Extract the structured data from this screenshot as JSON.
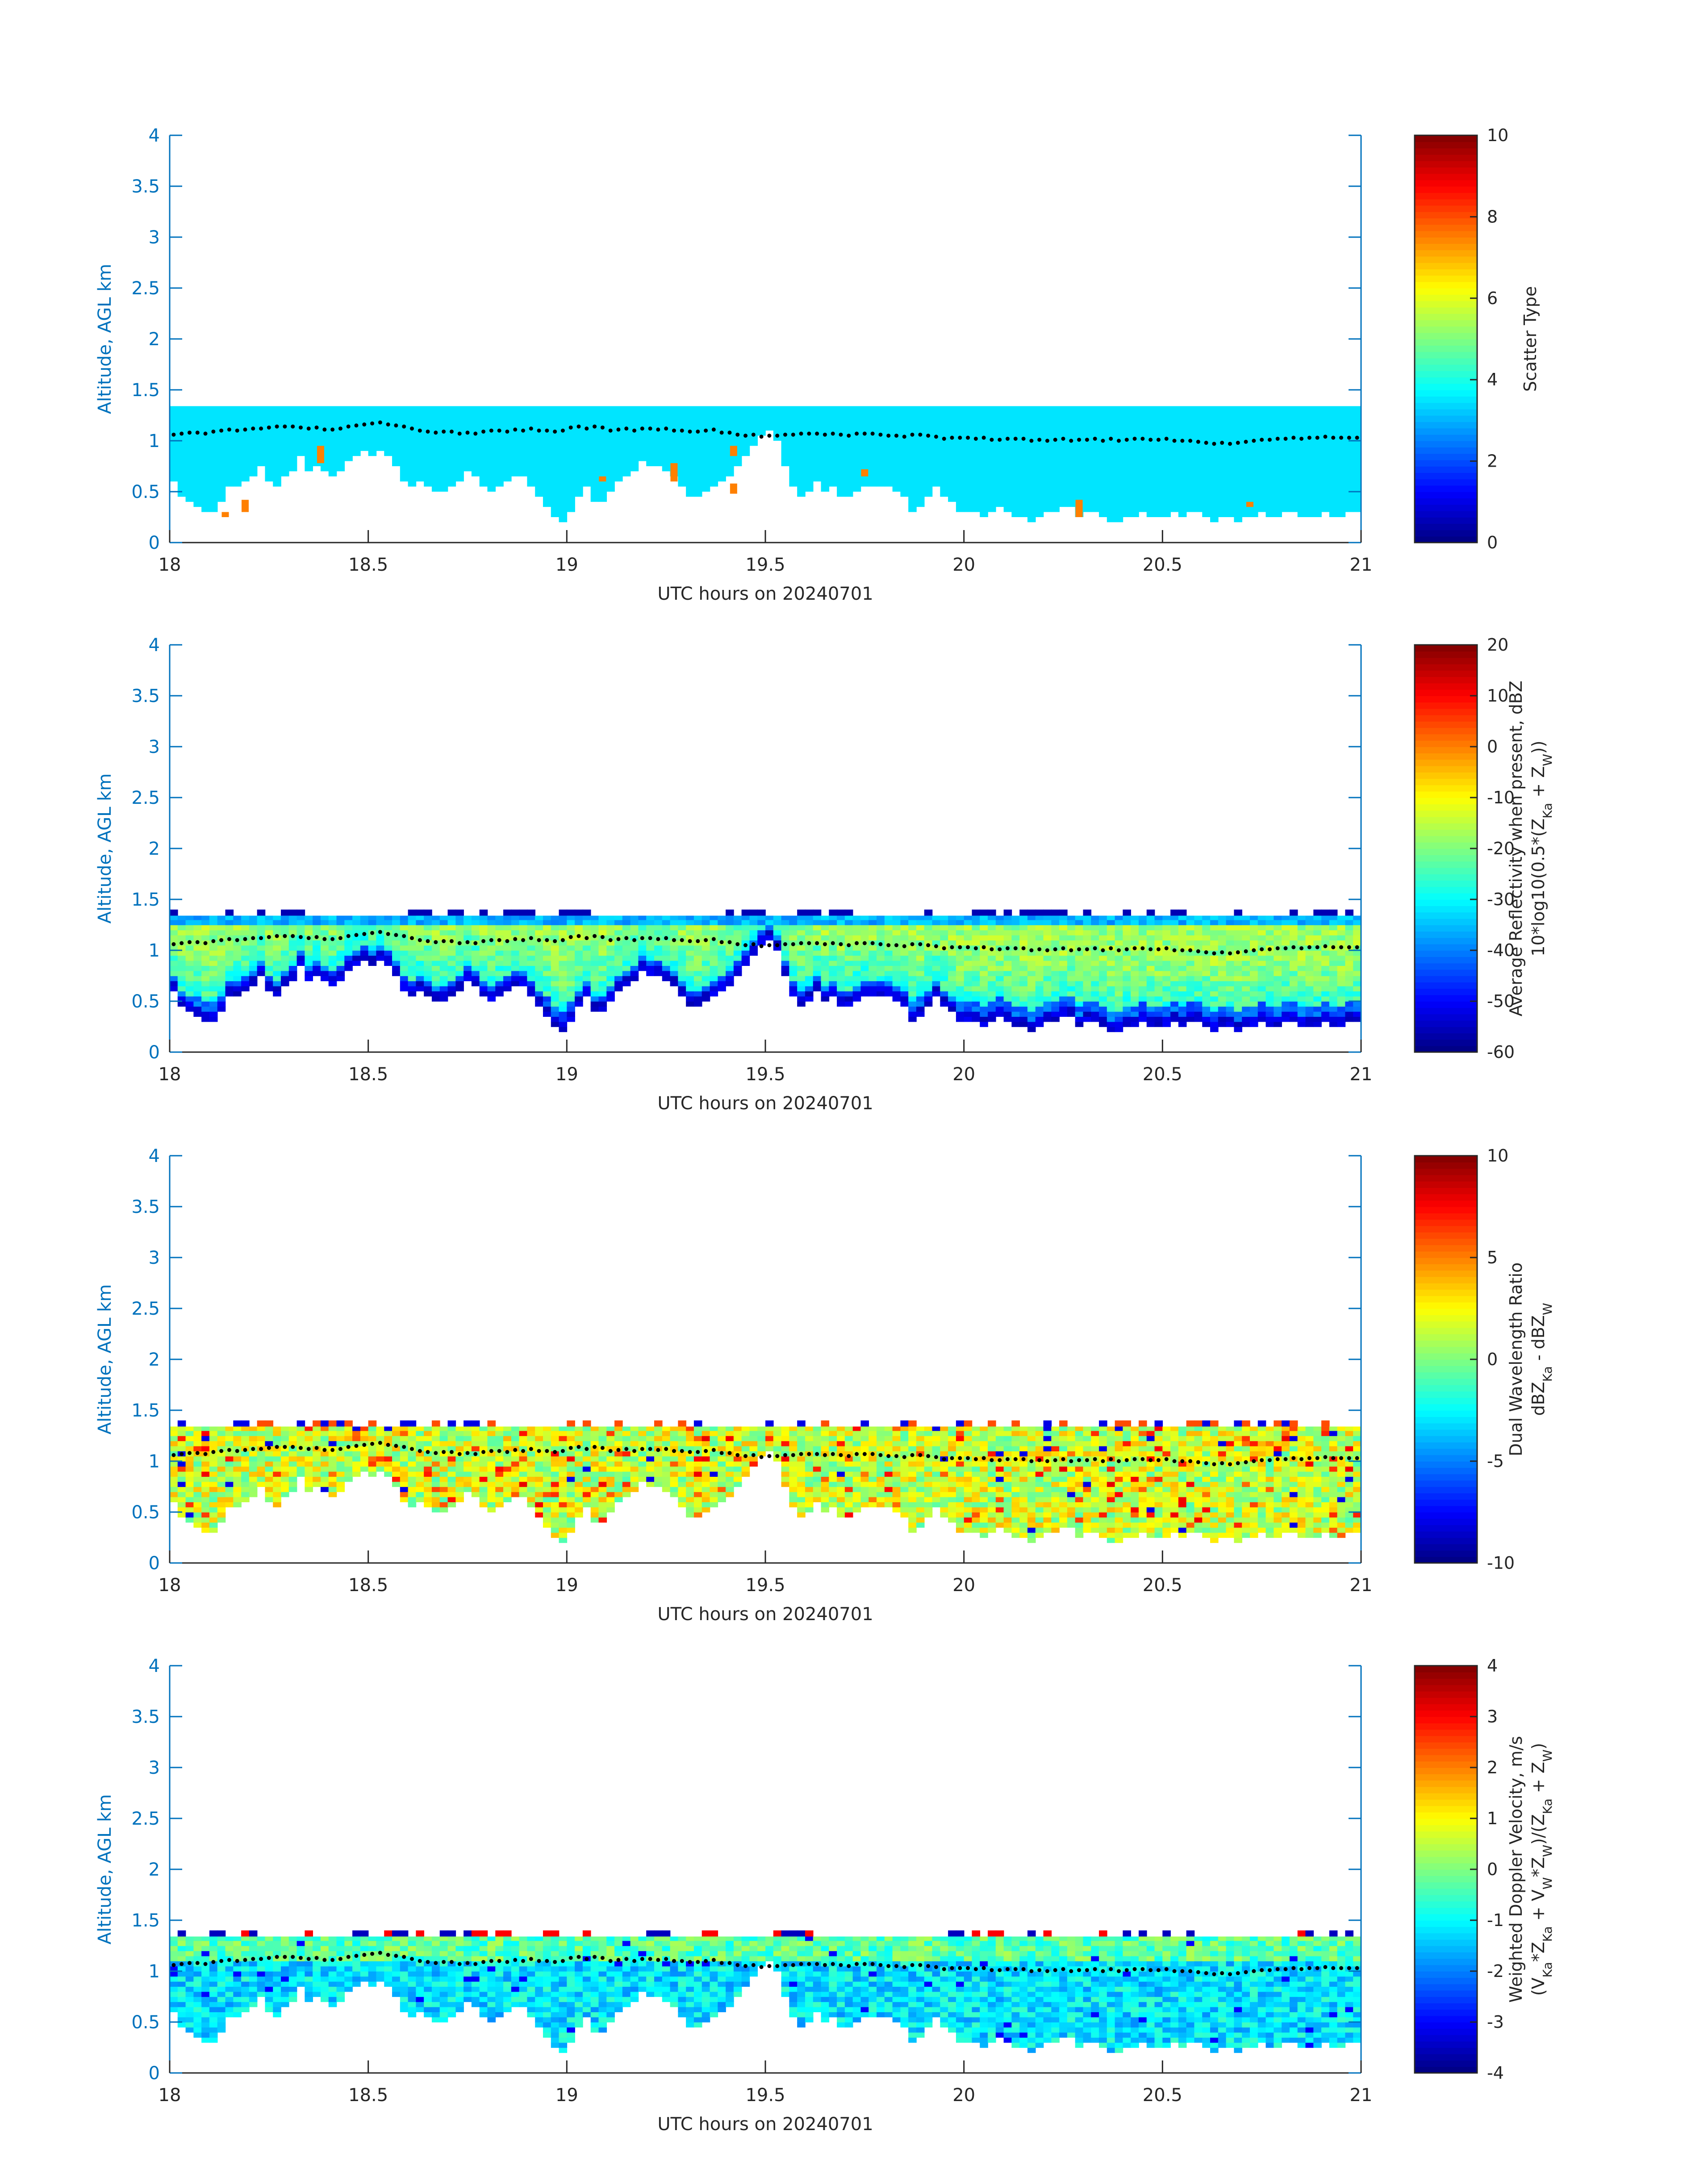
{
  "figure": {
    "background": "#ffffff",
    "axis_color": "#0072bd",
    "text_color": "#262626",
    "colormap": "jet",
    "cloud_top_marker_color": "#000000"
  },
  "chart_data": [
    {
      "type": "heatmap",
      "id": "scatter-type",
      "xlabel": "UTC hours on 20240701",
      "ylabel": "Altitude, AGL km",
      "xlim": [
        18,
        21
      ],
      "ylim": [
        0,
        4
      ],
      "xticks": [
        "18",
        "18.5",
        "19",
        "19.5",
        "20",
        "20.5",
        "21"
      ],
      "yticks": [
        "0",
        "0.5",
        "1",
        "1.5",
        "2",
        "2.5",
        "3",
        "3.5",
        "4"
      ],
      "colorbar": {
        "label_lines": [
          "Scatter Type"
        ],
        "clim": [
          0,
          10
        ],
        "ticks": [
          "0",
          "2",
          "4",
          "6",
          "8",
          "10"
        ]
      },
      "field": "scatter_type",
      "dominant_value": 3.5,
      "isolated_cells": [
        {
          "x": 18.14,
          "bottom": 0.25,
          "top": 0.3,
          "value": 7.5
        },
        {
          "x": 18.19,
          "bottom": 0.3,
          "top": 0.42,
          "value": 7.5
        },
        {
          "x": 18.38,
          "bottom": 0.78,
          "top": 0.95,
          "value": 7.5
        },
        {
          "x": 19.09,
          "bottom": 0.6,
          "top": 0.65,
          "value": 7.5
        },
        {
          "x": 19.27,
          "bottom": 0.6,
          "top": 0.78,
          "value": 7.5
        },
        {
          "x": 19.42,
          "bottom": 0.48,
          "top": 0.58,
          "value": 7.5
        },
        {
          "x": 19.42,
          "bottom": 0.85,
          "top": 0.95,
          "value": 7.5
        },
        {
          "x": 19.75,
          "bottom": 0.65,
          "top": 0.72,
          "value": 7.5
        },
        {
          "x": 20.29,
          "bottom": 0.25,
          "top": 0.42,
          "value": 7.5
        },
        {
          "x": 20.72,
          "bottom": 0.35,
          "top": 0.4,
          "value": 7.5
        }
      ]
    },
    {
      "type": "heatmap",
      "id": "reflectivity",
      "xlabel": "UTC hours on 20240701",
      "ylabel": "Altitude, AGL km",
      "xlim": [
        18,
        21
      ],
      "ylim": [
        0,
        4
      ],
      "xticks": [
        "18",
        "18.5",
        "19",
        "19.5",
        "20",
        "20.5",
        "21"
      ],
      "yticks": [
        "0",
        "0.5",
        "1",
        "1.5",
        "2",
        "2.5",
        "3",
        "3.5",
        "4"
      ],
      "colorbar": {
        "label_lines": [
          "Average Reflectivity when present, dBZ",
          "10*log10(0.5*(Z_Ka + Z_W))"
        ],
        "clim": [
          -60,
          20
        ],
        "ticks": [
          "-60",
          "-50",
          "-40",
          "-30",
          "-20",
          "-10",
          "0",
          "10",
          "20"
        ]
      },
      "field": "reflectivity"
    },
    {
      "type": "heatmap",
      "id": "dwr",
      "xlabel": "UTC hours on 20240701",
      "ylabel": "Altitude, AGL km",
      "xlim": [
        18,
        21
      ],
      "ylim": [
        0,
        4
      ],
      "xticks": [
        "18",
        "18.5",
        "19",
        "19.5",
        "20",
        "20.5",
        "21"
      ],
      "yticks": [
        "0",
        "0.5",
        "1",
        "1.5",
        "2",
        "2.5",
        "3",
        "3.5",
        "4"
      ],
      "colorbar": {
        "label_lines": [
          "Dual Wavelength Ratio",
          "dBZ_Ka - dBZ_W"
        ],
        "clim": [
          -10,
          10
        ],
        "ticks": [
          "-10",
          "-5",
          "0",
          "5",
          "10"
        ]
      },
      "field": "dwr"
    },
    {
      "type": "heatmap",
      "id": "doppler",
      "xlabel": "UTC hours on 20240701",
      "ylabel": "Altitude, AGL km",
      "xlim": [
        18,
        21
      ],
      "ylim": [
        0,
        4
      ],
      "xticks": [
        "18",
        "18.5",
        "19",
        "19.5",
        "20",
        "20.5",
        "21"
      ],
      "yticks": [
        "0",
        "0.5",
        "1",
        "1.5",
        "2",
        "2.5",
        "3",
        "3.5",
        "4"
      ],
      "colorbar": {
        "label_lines": [
          "Weighted Doppler Velocity, m/s",
          "(V_Ka*Z_Ka + V_W*Z_W)/(Z_Ka + Z_W)"
        ],
        "clim": [
          -4,
          4
        ],
        "ticks": [
          "-4",
          "-3",
          "-2",
          "-1",
          "0",
          "1",
          "2",
          "3",
          "4"
        ]
      },
      "field": "doppler"
    }
  ],
  "cloud_layer": {
    "time_step_h": 0.02,
    "top_km": 1.34,
    "base_km": [
      0.6,
      0.45,
      0.4,
      0.35,
      0.3,
      0.3,
      0.4,
      0.55,
      0.55,
      0.6,
      0.65,
      0.75,
      0.6,
      0.55,
      0.65,
      0.7,
      0.85,
      0.7,
      0.75,
      0.7,
      0.65,
      0.7,
      0.8,
      0.85,
      0.9,
      0.85,
      0.9,
      0.85,
      0.75,
      0.6,
      0.55,
      0.6,
      0.55,
      0.5,
      0.5,
      0.55,
      0.6,
      0.7,
      0.65,
      0.55,
      0.5,
      0.55,
      0.6,
      0.65,
      0.65,
      0.55,
      0.45,
      0.35,
      0.25,
      0.2,
      0.3,
      0.45,
      0.55,
      0.4,
      0.4,
      0.5,
      0.6,
      0.65,
      0.7,
      0.8,
      0.75,
      0.75,
      0.7,
      0.65,
      0.55,
      0.45,
      0.45,
      0.5,
      0.55,
      0.6,
      0.65,
      0.75,
      0.85,
      0.95,
      1.05,
      1.1,
      1.0,
      0.75,
      0.55,
      0.45,
      0.5,
      0.6,
      0.5,
      0.55,
      0.45,
      0.45,
      0.5,
      0.55,
      0.55,
      0.55,
      0.55,
      0.5,
      0.45,
      0.3,
      0.35,
      0.45,
      0.55,
      0.45,
      0.4,
      0.3,
      0.3,
      0.3,
      0.25,
      0.3,
      0.35,
      0.3,
      0.25,
      0.25,
      0.2,
      0.25,
      0.3,
      0.3,
      0.35,
      0.35,
      0.25,
      0.3,
      0.3,
      0.25,
      0.2,
      0.2,
      0.25,
      0.25,
      0.3,
      0.25,
      0.25,
      0.25,
      0.3,
      0.25,
      0.3,
      0.3,
      0.25,
      0.2,
      0.25,
      0.25,
      0.2,
      0.25,
      0.25,
      0.3,
      0.25,
      0.25,
      0.3,
      0.3,
      0.25,
      0.25,
      0.25,
      0.3,
      0.25,
      0.25,
      0.3,
      0.3
    ],
    "cloud_top_dots_km": [
      1.06,
      1.07,
      1.08,
      1.08,
      1.07,
      1.09,
      1.1,
      1.11,
      1.1,
      1.11,
      1.12,
      1.12,
      1.13,
      1.14,
      1.14,
      1.14,
      1.13,
      1.12,
      1.13,
      1.11,
      1.11,
      1.12,
      1.14,
      1.15,
      1.16,
      1.17,
      1.18,
      1.16,
      1.15,
      1.14,
      1.12,
      1.1,
      1.09,
      1.08,
      1.09,
      1.09,
      1.07,
      1.08,
      1.07,
      1.09,
      1.1,
      1.1,
      1.09,
      1.11,
      1.1,
      1.12,
      1.1,
      1.1,
      1.09,
      1.1,
      1.13,
      1.14,
      1.12,
      1.14,
      1.13,
      1.1,
      1.11,
      1.12,
      1.1,
      1.12,
      1.12,
      1.11,
      1.12,
      1.1,
      1.1,
      1.09,
      1.09,
      1.1,
      1.11,
      1.08,
      1.08,
      1.06,
      1.05,
      1.06,
      1.04,
      1.05,
      1.05,
      1.06,
      1.06,
      1.07,
      1.07,
      1.07,
      1.06,
      1.07,
      1.06,
      1.05,
      1.07,
      1.07,
      1.07,
      1.06,
      1.05,
      1.05,
      1.04,
      1.06,
      1.06,
      1.05,
      1.04,
      1.02,
      1.03,
      1.03,
      1.03,
      1.02,
      1.03,
      1.01,
      1.01,
      1.02,
      1.02,
      1.02,
      1.0,
      1.01,
      1.0,
      1.01,
      1.02,
      1.0,
      1.01,
      1.01,
      1.02,
      1.0,
      1.02,
      1.0,
      1.01,
      1.02,
      1.02,
      1.01,
      1.01,
      1.02,
      1.0,
      1.0,
      1.0,
      0.99,
      0.98,
      0.97,
      0.98,
      0.97,
      0.98,
      0.99,
      1.0,
      1.01,
      1.01,
      1.02,
      1.02,
      1.03,
      1.02,
      1.03,
      1.03,
      1.04,
      1.03,
      1.03,
      1.03,
      1.03
    ]
  }
}
